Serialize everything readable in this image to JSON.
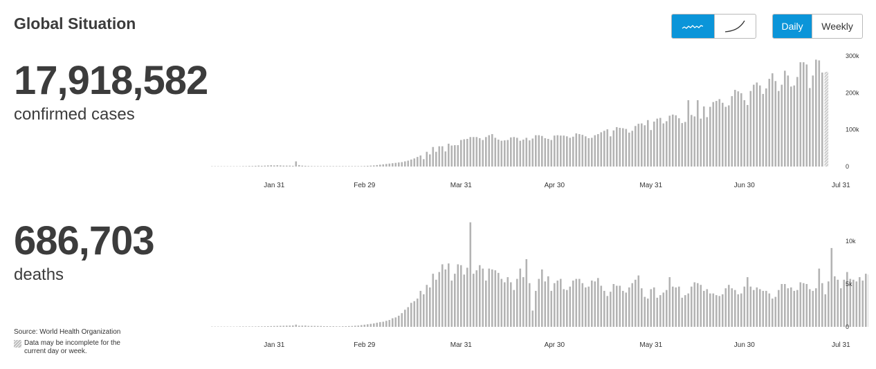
{
  "header": {
    "title": "Global Situation",
    "view_buttons": [
      {
        "icon": "wavy-line-icon",
        "active": true
      },
      {
        "icon": "curve-line-icon",
        "active": false
      }
    ],
    "period_buttons": [
      {
        "label": "Daily",
        "active": true
      },
      {
        "label": "Weekly",
        "active": false
      }
    ]
  },
  "cases": {
    "number": "17,918,582",
    "label": "confirmed cases"
  },
  "deaths": {
    "number": "686,703",
    "label": "deaths"
  },
  "footer": {
    "source": "Source: World Health Organization",
    "incomplete_note": "Data may be incomplete for the current day or week."
  },
  "colors": {
    "bar": "#b3b3b3",
    "active": "#0b95d9",
    "text": "#3c3c3c"
  },
  "chart_data": [
    {
      "type": "bar",
      "name": "confirmed cases",
      "start_date": "Jan 11",
      "x_tick_labels": [
        "Jan 31",
        "Feb 29",
        "Mar 31",
        "Apr 30",
        "May 31",
        "Jun 30",
        "Jul 31"
      ],
      "y_tick_labels": [
        "0",
        "100k",
        "200k",
        "300k"
      ],
      "y_ticks": [
        0,
        100000,
        200000,
        300000
      ],
      "ylim": [
        0,
        300000
      ],
      "incomplete_last_day": true,
      "values": [
        0,
        0,
        0,
        0,
        0,
        0,
        0,
        0,
        0,
        0,
        1000,
        1000,
        1500,
        1500,
        2000,
        2500,
        2000,
        2500,
        3000,
        3500,
        3000,
        3500,
        3000,
        2500,
        2500,
        2500,
        2000,
        14000,
        4000,
        2500,
        2000,
        1500,
        1200,
        1000,
        1000,
        800,
        600,
        500,
        400,
        400,
        400,
        400,
        500,
        500,
        600,
        600,
        800,
        1000,
        1200,
        1500,
        2000,
        2500,
        3000,
        4000,
        5000,
        6000,
        7000,
        8000,
        9000,
        10000,
        11000,
        12000,
        14000,
        16000,
        19000,
        22000,
        26000,
        30000,
        20000,
        40000,
        33000,
        53000,
        40000,
        55000,
        55000,
        41000,
        62000,
        57000,
        58000,
        58000,
        72000,
        74000,
        75000,
        80000,
        80000,
        80000,
        77000,
        72000,
        80000,
        85000,
        88000,
        78000,
        73000,
        70000,
        71000,
        72000,
        79000,
        80000,
        78000,
        70000,
        73000,
        78000,
        71000,
        76000,
        85000,
        85000,
        83000,
        77000,
        75000,
        72000,
        84000,
        85000,
        84000,
        84000,
        82000,
        78000,
        81000,
        90000,
        88000,
        86000,
        82000,
        77000,
        78000,
        85000,
        88000,
        93000,
        97000,
        101000,
        82000,
        98000,
        107000,
        105000,
        104000,
        102000,
        92000,
        97000,
        110000,
        116000,
        117000,
        112000,
        126000,
        99000,
        122000,
        130000,
        132000,
        117000,
        123000,
        138000,
        141000,
        139000,
        131000,
        118000,
        121000,
        180000,
        140000,
        136000,
        180000,
        130000,
        163000,
        134000,
        162000,
        175000,
        178000,
        183000,
        173000,
        162000,
        166000,
        191000,
        208000,
        204000,
        199000,
        180000,
        167000,
        205000,
        222000,
        228000,
        220000,
        197000,
        212000,
        238000,
        253000,
        232000,
        205000,
        222000,
        260000,
        247000,
        217000,
        220000,
        243000,
        283000,
        283000,
        277000,
        213000,
        247000,
        290000,
        288000,
        255000,
        257000
      ]
    },
    {
      "type": "bar",
      "name": "deaths",
      "start_date": "Jan 11",
      "x_tick_labels": [
        "Jan 31",
        "Feb 29",
        "Mar 31",
        "Apr 30",
        "May 31",
        "Jun 30",
        "Jul 31"
      ],
      "y_tick_labels": [
        "0",
        "5k",
        "10k"
      ],
      "y_ticks": [
        0,
        5000,
        10000
      ],
      "ylim": [
        0,
        10000
      ],
      "incomplete_last_day": true,
      "values": [
        0,
        0,
        0,
        0,
        0,
        0,
        0,
        0,
        0,
        10,
        10,
        20,
        30,
        40,
        50,
        60,
        60,
        70,
        80,
        90,
        100,
        110,
        120,
        130,
        140,
        150,
        160,
        260,
        130,
        140,
        150,
        110,
        110,
        110,
        100,
        100,
        80,
        80,
        70,
        70,
        60,
        60,
        70,
        80,
        90,
        100,
        130,
        150,
        200,
        250,
        300,
        350,
        400,
        480,
        550,
        600,
        700,
        800,
        1000,
        1100,
        1300,
        1600,
        2000,
        2300,
        2800,
        3000,
        3300,
        4200,
        3800,
        4900,
        4600,
        6200,
        5500,
        6400,
        7300,
        6700,
        7400,
        5400,
        6200,
        7300,
        7200,
        6100,
        6900,
        12200,
        6200,
        6600,
        7200,
        6800,
        5400,
        6800,
        6700,
        6600,
        6300,
        5600,
        5200,
        5800,
        5200,
        4300,
        5600,
        6800,
        5800,
        7900,
        5100,
        1900,
        4200,
        5600,
        6700,
        5300,
        5900,
        4200,
        5100,
        5400,
        5600,
        4400,
        4300,
        4700,
        5400,
        5600,
        5600,
        5100,
        4600,
        4700,
        5400,
        5300,
        5700,
        4800,
        4200,
        3600,
        4100,
        5000,
        4800,
        4800,
        4200,
        4000,
        4600,
        5100,
        5500,
        6000,
        4500,
        3500,
        3300,
        4400,
        4600,
        3400,
        3700,
        4000,
        4300,
        5800,
        4700,
        4600,
        4700,
        3400,
        3700,
        3900,
        4700,
        5200,
        5100,
        4900,
        4200,
        4400,
        3900,
        3900,
        3700,
        3600,
        3800,
        4500,
        4900,
        4500,
        4300,
        3800,
        3900,
        4700,
        5800,
        4700,
        4300,
        4600,
        4400,
        4200,
        4200,
        3900,
        3300,
        3500,
        4300,
        5000,
        5000,
        4500,
        4600,
        4200,
        4300,
        5200,
        5100,
        5000,
        4400,
        4200,
        4500,
        6800,
        5100,
        3800,
        5300,
        9200,
        5900,
        5500,
        4500,
        5500,
        6400,
        5600,
        5500,
        5300,
        5800,
        5400,
        6200,
        6100,
        6000,
        5100,
        6800,
        5900,
        5400,
        5500,
        5300
      ]
    }
  ]
}
